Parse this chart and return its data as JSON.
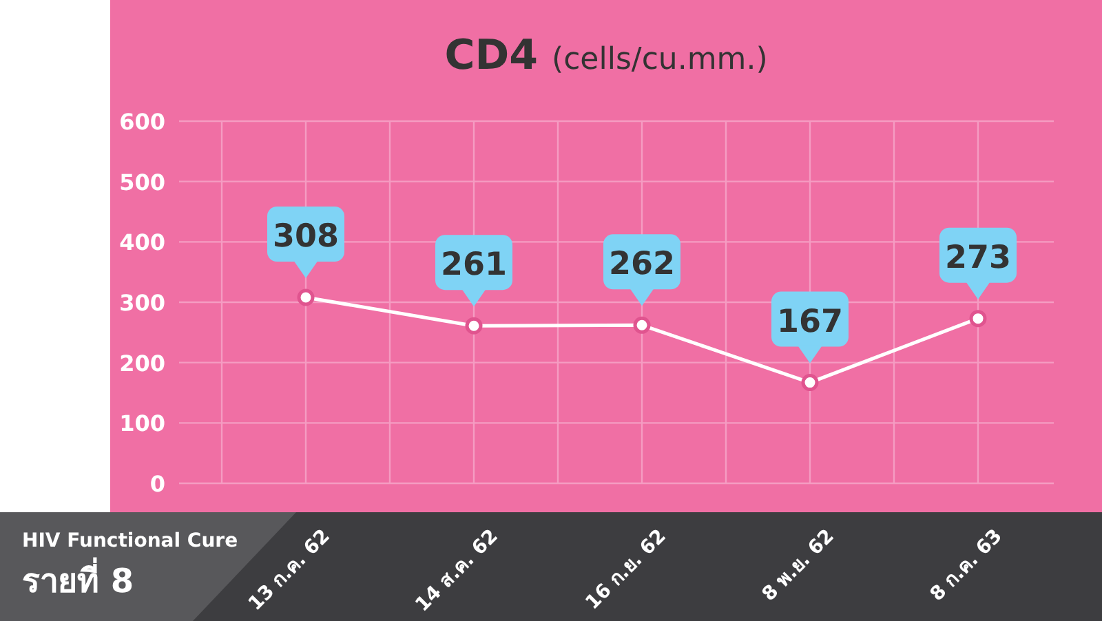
{
  "chart_data": {
    "type": "line",
    "title": "CD4",
    "subtitle": "(cells/cu.mm.)",
    "categories": [
      "13 ก.ค. 62",
      "14 ส.ค. 62",
      "16 ก.ย. 62",
      "8 พ.ย. 62",
      "8 ก.ค. 63"
    ],
    "series": [
      {
        "color": "#ffffff",
        "values": [
          308,
          261,
          262,
          167,
          273
        ]
      }
    ],
    "ylim": [
      0,
      600
    ],
    "yticks": [
      0,
      100,
      200,
      300,
      400,
      500,
      600
    ],
    "grid": true,
    "marker": "circle",
    "line_style": "solid",
    "data_labels": true,
    "annotations": [
      "HIV Functional Cure",
      "รายที่ 8"
    ]
  }
}
